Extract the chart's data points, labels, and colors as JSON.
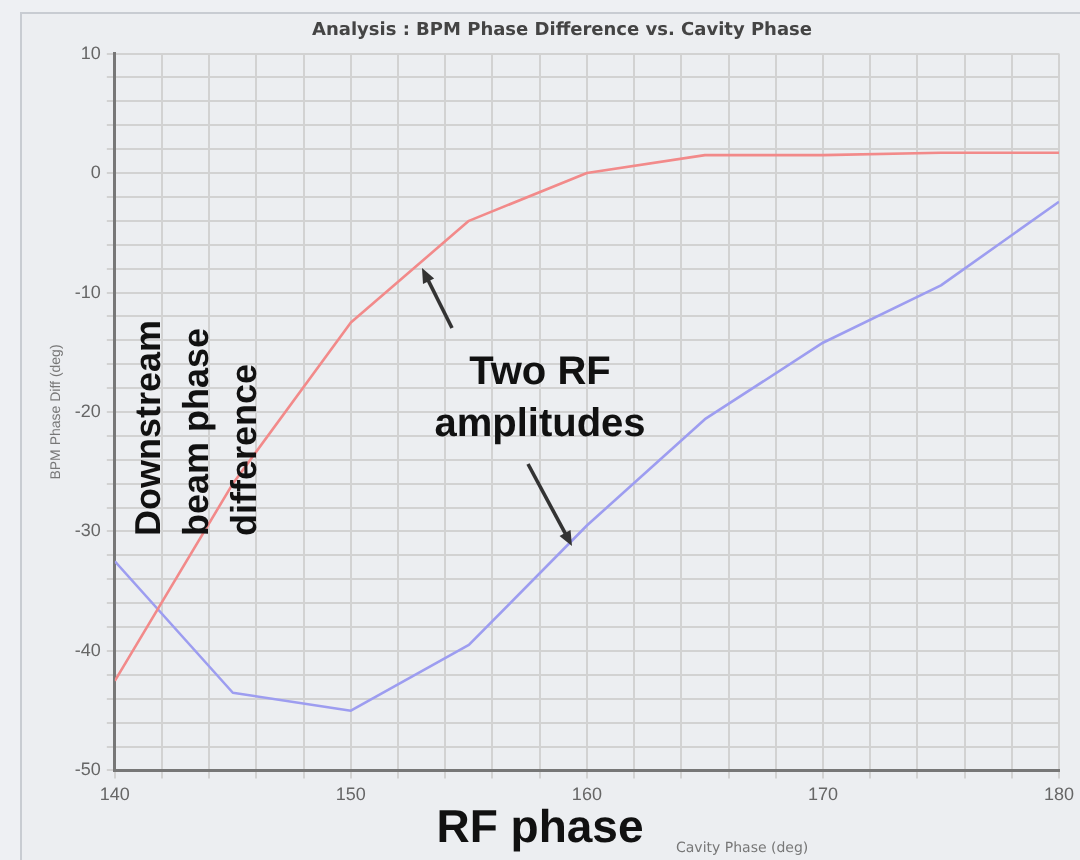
{
  "chart_data": {
    "type": "line",
    "title": "Analysis : BPM Phase Difference vs. Cavity Phase",
    "xlabel": "Cavity Phase (deg)",
    "ylabel": "BPM Phase Diff (deg)",
    "annotations": [
      "Downstream beam phase difference",
      {
        "text": "Two RF amplitudes",
        "x": 153,
        "y": -8
      },
      "RF phase"
    ],
    "x": [
      140,
      145,
      150,
      155,
      160,
      165,
      170,
      175,
      180
    ],
    "series": [
      {
        "color": "#f28a8a",
        "values": [
          -42.5,
          -26,
          -12.5,
          -4,
          0,
          1.5,
          1.5,
          1.7,
          1.7
        ]
      },
      {
        "color": "#9d9df0",
        "values": [
          -32.5,
          -43.5,
          -45,
          -39.5,
          -29.5,
          -20.6,
          -14.2,
          -9.4,
          -2.4
        ]
      }
    ],
    "xlim": [
      140,
      180
    ],
    "ylim": [
      -50,
      10
    ],
    "xticks": [
      140,
      {
        "value": 142,
        "label": null
      },
      {
        "value": 144,
        "label": null
      },
      {
        "value": 146,
        "label": null
      },
      {
        "value": 148,
        "label": null
      },
      150,
      {
        "value": 152,
        "label": null
      },
      {
        "value": 154,
        "label": null
      },
      {
        "value": 156,
        "label": null
      },
      {
        "value": 158,
        "label": null
      },
      160,
      {
        "value": 162,
        "label": null
      },
      {
        "value": 164,
        "label": null
      },
      {
        "value": 166,
        "label": null
      },
      {
        "value": 168,
        "label": null
      },
      170,
      {
        "value": 172,
        "label": null
      },
      {
        "value": 174,
        "label": null
      },
      {
        "value": 176,
        "label": null
      },
      {
        "value": 178,
        "label": null
      },
      180
    ],
    "yticks": [
      -50,
      {
        "value": -48,
        "label": null
      },
      {
        "value": -46,
        "label": null
      },
      {
        "value": -44,
        "label": null
      },
      {
        "value": -42,
        "label": null
      },
      -40,
      {
        "value": -38,
        "label": null
      },
      {
        "value": -36,
        "label": null
      },
      {
        "value": -34,
        "label": null
      },
      {
        "value": -32,
        "label": null
      },
      -30,
      {
        "value": -28,
        "label": null
      },
      {
        "value": -26,
        "label": null
      },
      {
        "value": -24,
        "label": null
      },
      {
        "value": -22,
        "label": null
      },
      -20,
      {
        "value": -18,
        "label": null
      },
      {
        "value": -16,
        "label": null
      },
      {
        "value": -14,
        "label": null
      },
      {
        "value": -12,
        "label": null
      },
      -10,
      {
        "value": -8,
        "label": null
      },
      {
        "value": -6,
        "label": null
      },
      {
        "value": -4,
        "label": null
      },
      {
        "value": -2,
        "label": null
      },
      0,
      {
        "value": 2,
        "label": null
      },
      {
        "value": 4,
        "label": null
      },
      {
        "value": 6,
        "label": null
      },
      {
        "value": 8,
        "label": null
      },
      10
    ],
    "grid": true,
    "legend": false,
    "marker": "none"
  }
}
